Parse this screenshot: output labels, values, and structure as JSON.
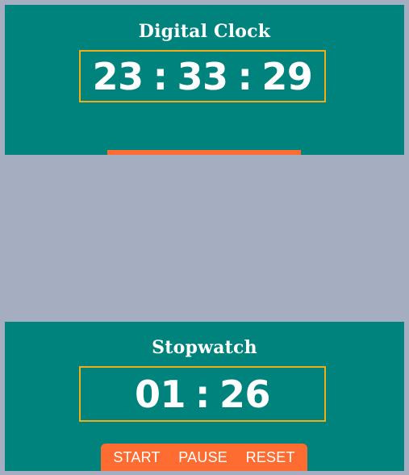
{
  "clock": {
    "title": "Digital Clock",
    "hours": "23",
    "minutes": "33",
    "seconds": "29",
    "separator": ":"
  },
  "stopwatch": {
    "title": "Stopwatch",
    "minutes": "01",
    "seconds": "26",
    "separator": ":",
    "buttons": {
      "start": "START",
      "pause": "PAUSE",
      "reset": "RESET"
    }
  },
  "colors": {
    "background": "#a5aec0",
    "panel": "#00837c",
    "box_border": "#f2ae14",
    "accent": "#fe6c32",
    "text": "#ffffff"
  }
}
